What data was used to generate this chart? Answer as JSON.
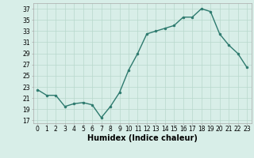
{
  "x": [
    0,
    1,
    2,
    3,
    4,
    5,
    6,
    7,
    8,
    9,
    10,
    11,
    12,
    13,
    14,
    15,
    16,
    17,
    18,
    19,
    20,
    21,
    22,
    23
  ],
  "y": [
    22.5,
    21.5,
    21.5,
    19.5,
    20.0,
    20.2,
    19.8,
    17.5,
    19.5,
    22.0,
    26.0,
    29.0,
    32.5,
    33.0,
    33.5,
    34.0,
    35.5,
    35.5,
    37.0,
    36.5,
    32.5,
    30.5,
    29.0,
    26.5
  ],
  "line_color": "#2d7a6e",
  "marker_color": "#2d7a6e",
  "bg_color": "#d8eee8",
  "grid_color": "#b8d8cc",
  "xlabel": "Humidex (Indice chaleur)",
  "yticks": [
    17,
    19,
    21,
    23,
    25,
    27,
    29,
    31,
    33,
    35,
    37
  ],
  "xticks": [
    0,
    1,
    2,
    3,
    4,
    5,
    6,
    7,
    8,
    9,
    10,
    11,
    12,
    13,
    14,
    15,
    16,
    17,
    18,
    19,
    20,
    21,
    22,
    23
  ],
  "ylim": [
    16.5,
    38.0
  ],
  "xlim": [
    -0.5,
    23.5
  ],
  "tick_fontsize": 5.5,
  "xlabel_fontsize": 7
}
